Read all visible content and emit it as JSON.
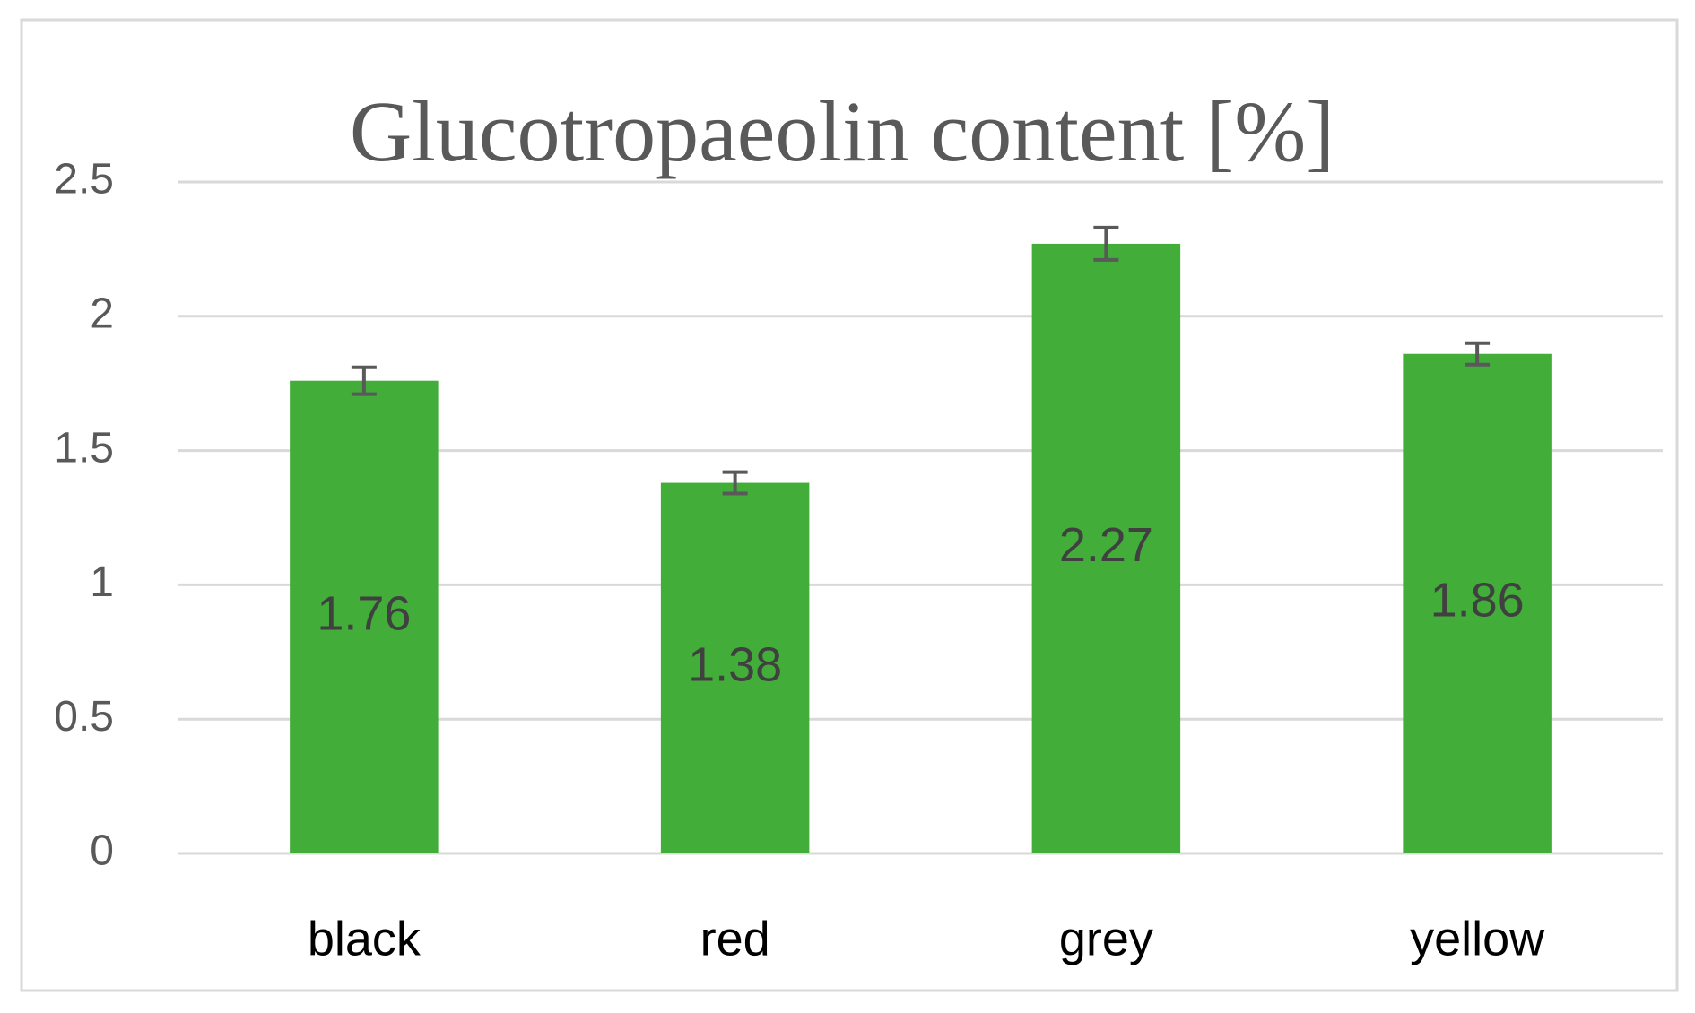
{
  "chart_data": {
    "type": "bar",
    "title": "Glucotropaeolin  content [%]",
    "categories": [
      "black",
      "red",
      "grey",
      "yellow"
    ],
    "values": [
      1.76,
      1.38,
      2.27,
      1.86
    ],
    "errors": [
      0.05,
      0.04,
      0.06,
      0.04
    ],
    "color": "#43ad3a",
    "ylim": [
      0,
      2.5
    ],
    "yticks": [
      0,
      0.5,
      1,
      1.5,
      2,
      2.5
    ],
    "grid": true
  }
}
